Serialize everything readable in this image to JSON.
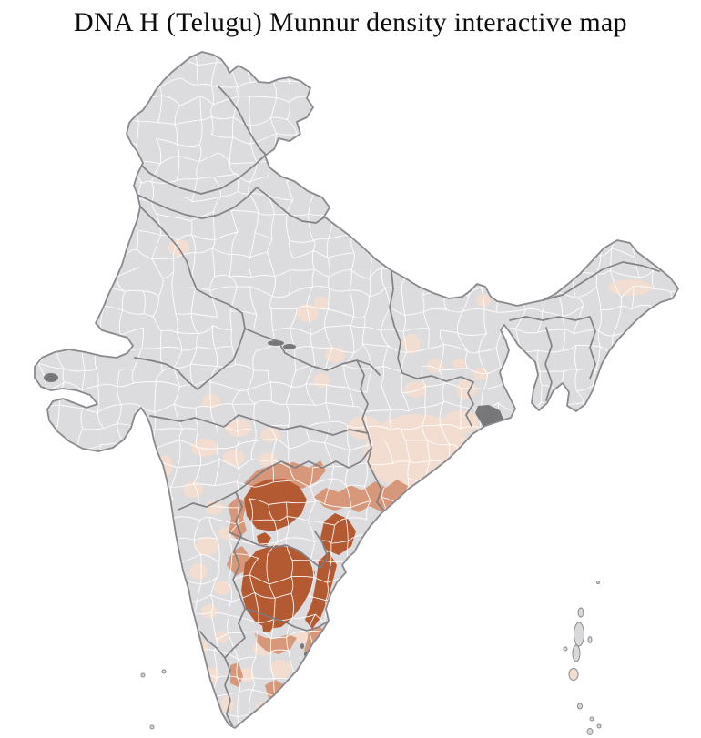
{
  "title": "DNA H (Telugu) Munnur density interactive map",
  "map": {
    "description": "District-level choropleth map of India; density concentrated in Telangana, coastal Andhra Pradesh and northern Tamil Nadu",
    "land_color": "#dcdcdf",
    "district_border_color": "#ffffff",
    "state_border_color": "#7c7c81",
    "outline_color": "#89898d",
    "water_marsh_color": "#6b6b6f",
    "island_color": "#d9d9db",
    "density_scale": [
      {
        "level": "none",
        "color": "#dcdcdf"
      },
      {
        "level": "low",
        "color": "#f2ddd0"
      },
      {
        "level": "medium",
        "color": "#d6977a"
      },
      {
        "level": "high",
        "color": "#b45a33"
      }
    ],
    "regions": [
      {
        "id": "telangana-core",
        "level": "high"
      },
      {
        "id": "hyderabad-district",
        "level": "high"
      },
      {
        "id": "godavari-delta-block",
        "level": "high"
      },
      {
        "id": "guntur-nellore-block",
        "level": "high"
      },
      {
        "id": "nellore-coastal-strip",
        "level": "high"
      },
      {
        "id": "interior-tamilnadu-district",
        "level": "high"
      },
      {
        "id": "adilabad-band",
        "level": "medium"
      },
      {
        "id": "khammam-godavari-band",
        "level": "medium"
      },
      {
        "id": "srikakulam-coastal-band",
        "level": "medium"
      },
      {
        "id": "west-telangana-edge",
        "level": "medium"
      },
      {
        "id": "kurnool-district",
        "level": "medium"
      },
      {
        "id": "north-tamilnadu-belt",
        "level": "medium"
      },
      {
        "id": "chennai-coastal-belt",
        "level": "medium"
      },
      {
        "id": "central-tamilnadu-district",
        "level": "medium"
      },
      {
        "id": "palakkad-district",
        "level": "medium"
      },
      {
        "id": "punjab-district",
        "level": "low"
      },
      {
        "id": "west-uttar-pradesh-1",
        "level": "low"
      },
      {
        "id": "west-uttar-pradesh-2",
        "level": "low"
      },
      {
        "id": "south-uttar-pradesh-1",
        "level": "low"
      },
      {
        "id": "south-uttar-pradesh-2",
        "level": "low"
      },
      {
        "id": "central-madhya-pradesh",
        "level": "low"
      },
      {
        "id": "bihar-1",
        "level": "low"
      },
      {
        "id": "bihar-2",
        "level": "low"
      },
      {
        "id": "bihar-3",
        "level": "low"
      },
      {
        "id": "jharkhand-1",
        "level": "low"
      },
      {
        "id": "west-bengal-1",
        "level": "low"
      },
      {
        "id": "west-bengal-2",
        "level": "low"
      },
      {
        "id": "odisha-main",
        "level": "low"
      },
      {
        "id": "odisha-north",
        "level": "low"
      },
      {
        "id": "south-chhattisgarh",
        "level": "low"
      },
      {
        "id": "vidarbha-1",
        "level": "low"
      },
      {
        "id": "vidarbha-2",
        "level": "low"
      },
      {
        "id": "marathwada-1",
        "level": "low"
      },
      {
        "id": "marathwada-2",
        "level": "low"
      },
      {
        "id": "marathwada-3",
        "level": "low"
      },
      {
        "id": "konkan-mumbai",
        "level": "low"
      },
      {
        "id": "south-maharashtra-1",
        "level": "low"
      },
      {
        "id": "south-maharashtra-2",
        "level": "low"
      },
      {
        "id": "north-karnataka-1",
        "level": "low"
      },
      {
        "id": "north-karnataka-2",
        "level": "low"
      },
      {
        "id": "north-karnataka-3",
        "level": "low"
      },
      {
        "id": "north-karnataka-4",
        "level": "low"
      },
      {
        "id": "south-karnataka-1",
        "level": "low"
      },
      {
        "id": "south-karnataka-2",
        "level": "low"
      },
      {
        "id": "kerala-1",
        "level": "low"
      },
      {
        "id": "kerala-2",
        "level": "low"
      },
      {
        "id": "kerala-3",
        "level": "low"
      },
      {
        "id": "tamilnadu-1",
        "level": "low"
      },
      {
        "id": "tamilnadu-2",
        "level": "low"
      },
      {
        "id": "tamilnadu-3",
        "level": "low"
      },
      {
        "id": "tamilnadu-4",
        "level": "low"
      },
      {
        "id": "tamilnadu-5",
        "level": "low"
      },
      {
        "id": "tamilnadu-6",
        "level": "low"
      },
      {
        "id": "sikkim-district",
        "level": "low"
      },
      {
        "id": "arunachal-east",
        "level": "low"
      },
      {
        "id": "andaman-middle-island",
        "level": "low"
      }
    ]
  }
}
